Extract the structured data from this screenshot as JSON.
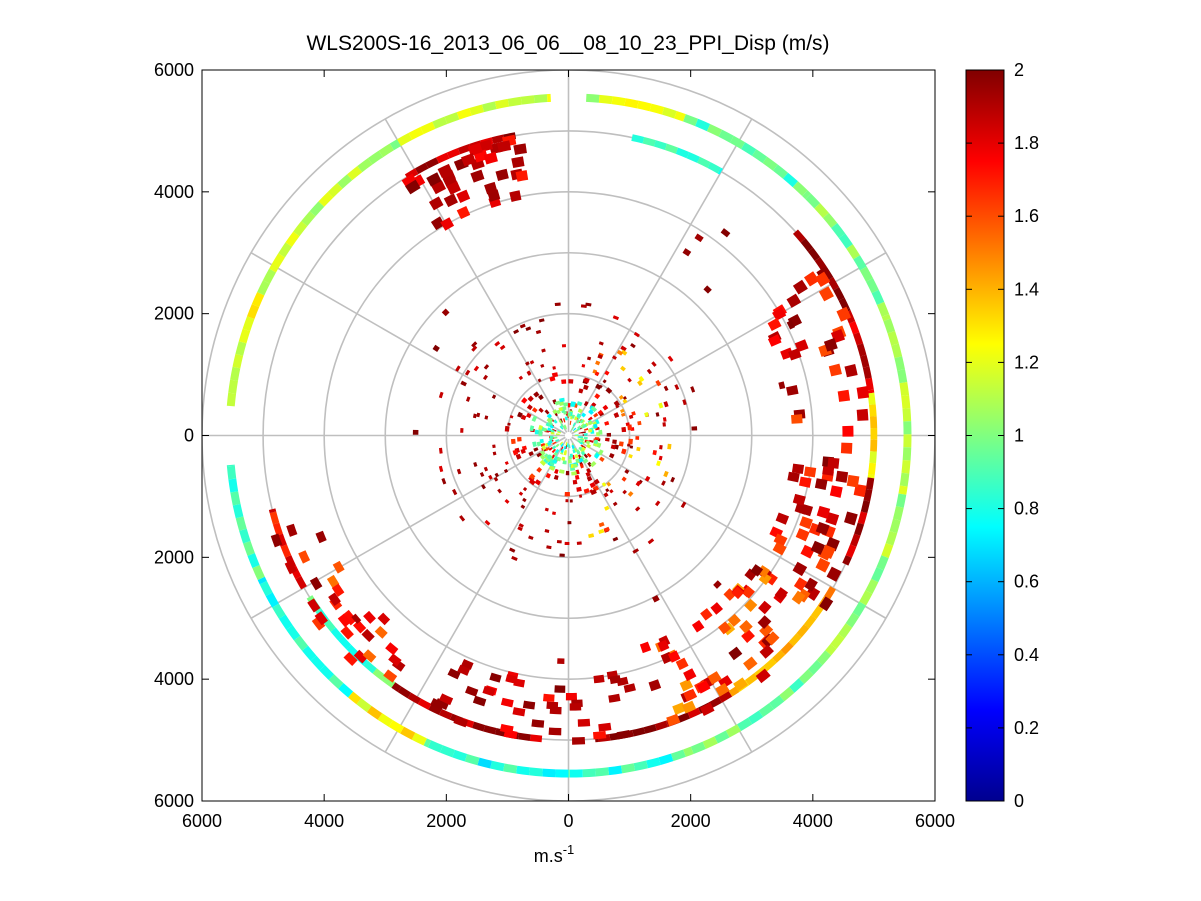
{
  "chart_data": {
    "type": "heatmap",
    "subtype": "polar-ppi",
    "title": "WLS200S-16_2013_06_06__08_10_23_PPI_Disp (m/s)",
    "xlabel_base": "m.s",
    "xlabel_sup": "-1",
    "xlim": [
      -6000,
      6000
    ],
    "ylim": [
      -6000,
      6000
    ],
    "x_ticks": [
      -6000,
      -4000,
      -2000,
      0,
      2000,
      4000,
      6000
    ],
    "x_tick_labels": [
      "6000",
      "4000",
      "2000",
      "0",
      "2000",
      "4000",
      "6000"
    ],
    "y_ticks": [
      6000,
      4000,
      2000,
      0,
      -2000,
      -4000,
      -6000
    ],
    "y_tick_labels": [
      "6000",
      "4000",
      "2000",
      "0",
      "2000",
      "4000",
      "6000"
    ],
    "polar_grid": {
      "ring_radii": [
        1000,
        2000,
        3000,
        4000,
        5000,
        6000
      ],
      "spoke_angles_deg": [
        0,
        30,
        60,
        90,
        120,
        150,
        180,
        210,
        240,
        270,
        300,
        330
      ]
    },
    "colorbar": {
      "colormap": "jet",
      "min": 0,
      "max": 2,
      "ticks": [
        0,
        0.2,
        0.4,
        0.6,
        0.8,
        1,
        1.2,
        1.4,
        1.6,
        1.8,
        2
      ],
      "tick_labels": [
        "0",
        "0.2",
        "0.4",
        "0.6",
        "0.8",
        "1",
        "1.2",
        "1.4",
        "1.6",
        "1.8",
        "2"
      ]
    },
    "outer_ring": {
      "range_m": 5550,
      "segments": [
        {
          "from_deg": 3,
          "to_deg": 20,
          "value": 1.15
        },
        {
          "from_deg": 20,
          "to_deg": 45,
          "value": 0.9
        },
        {
          "from_deg": 45,
          "to_deg": 70,
          "value": 1.0
        },
        {
          "from_deg": 70,
          "to_deg": 100,
          "value": 1.08
        },
        {
          "from_deg": 100,
          "to_deg": 130,
          "value": 1.05
        },
        {
          "from_deg": 130,
          "to_deg": 160,
          "value": 0.95
        },
        {
          "from_deg": 160,
          "to_deg": 180,
          "value": 0.85
        },
        {
          "from_deg": 180,
          "to_deg": 205,
          "value": 0.8
        },
        {
          "from_deg": 205,
          "to_deg": 220,
          "value": 1.25
        },
        {
          "from_deg": 220,
          "to_deg": 245,
          "value": 0.8
        },
        {
          "from_deg": 245,
          "to_deg": 265,
          "value": 0.9
        },
        {
          "from_deg": 275,
          "to_deg": 300,
          "value": 1.2
        },
        {
          "from_deg": 300,
          "to_deg": 330,
          "value": 1.1
        },
        {
          "from_deg": 330,
          "to_deg": 357,
          "value": 1.2
        }
      ]
    },
    "second_ring": {
      "range_m": 5000,
      "segments": [
        {
          "from_deg": 12,
          "to_deg": 30,
          "value": 0.85
        },
        {
          "from_deg": 48,
          "to_deg": 66,
          "value": 2.0
        },
        {
          "from_deg": 66,
          "to_deg": 82,
          "value": 1.85
        },
        {
          "from_deg": 82,
          "to_deg": 98,
          "value": 1.3
        },
        {
          "from_deg": 98,
          "to_deg": 115,
          "value": 1.9
        },
        {
          "from_deg": 120,
          "to_deg": 148,
          "value": 1.4
        },
        {
          "from_deg": 148,
          "to_deg": 175,
          "value": 1.95
        },
        {
          "from_deg": 185,
          "to_deg": 215,
          "value": 1.9
        },
        {
          "from_deg": 215,
          "to_deg": 238,
          "value": 0.9
        },
        {
          "from_deg": 240,
          "to_deg": 256,
          "value": 1.75
        },
        {
          "from_deg": 328,
          "to_deg": 350,
          "value": 1.9
        }
      ]
    }
  }
}
